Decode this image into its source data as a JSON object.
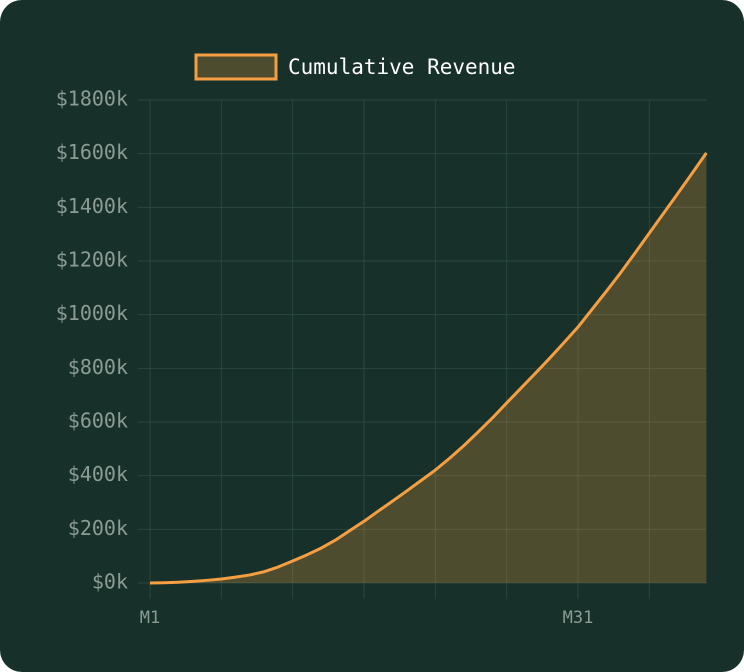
{
  "chart_data": {
    "type": "area",
    "categories": [
      "M1",
      null,
      null,
      null,
      null,
      null,
      null,
      null,
      null,
      null,
      null,
      null,
      null,
      null,
      null,
      null,
      null,
      null,
      null,
      null,
      null,
      null,
      null,
      null,
      null,
      null,
      null,
      null,
      null,
      null,
      "M31",
      null,
      null,
      null,
      null,
      null,
      null,
      null,
      null,
      null
    ],
    "series": [
      {
        "name": "Cumulative Revenue",
        "color": "#f59e42",
        "values": [
          0,
          1000,
          3000,
          6000,
          10000,
          15000,
          22000,
          30000,
          42000,
          60000,
          82000,
          105000,
          130000,
          160000,
          195000,
          230000,
          268000,
          305000,
          343000,
          382000,
          421000,
          465000,
          512000,
          563000,
          615000,
          671000,
          726000,
          781000,
          837000,
          895000,
          954000,
          1021000,
          1088000,
          1157000,
          1230000,
          1304000,
          1378000,
          1452000,
          1527000,
          1603000
        ]
      }
    ],
    "ylim": [
      0,
      1800000
    ],
    "yticks": [
      {
        "value": 0,
        "label": "$0k"
      },
      {
        "value": 200000,
        "label": "$200k"
      },
      {
        "value": 400000,
        "label": "$400k"
      },
      {
        "value": 600000,
        "label": "$600k"
      },
      {
        "value": 800000,
        "label": "$800k"
      },
      {
        "value": 1000000,
        "label": "$1000k"
      },
      {
        "value": 1200000,
        "label": "$1200k"
      },
      {
        "value": 1400000,
        "label": "$1400k"
      },
      {
        "value": 1600000,
        "label": "$1600k"
      },
      {
        "value": 1800000,
        "label": "$1800k"
      }
    ],
    "grid": true
  }
}
